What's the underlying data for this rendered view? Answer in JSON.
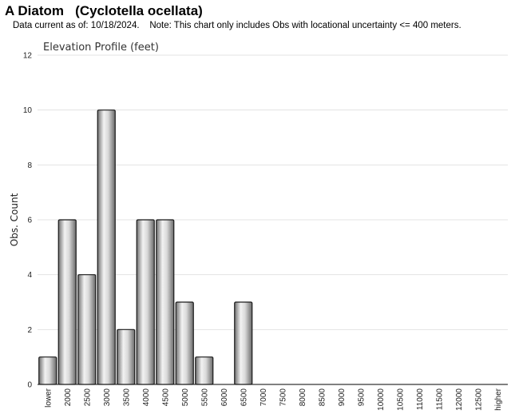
{
  "header": {
    "title": "A Diatom   (Cyclotella ocellata)",
    "note": "Data current as of: 10/18/2024.    Note: This chart only includes Obs with locational uncertainty <= 400 meters."
  },
  "chart_data": {
    "type": "bar",
    "title": "Elevation Profile (feet)",
    "xlabel": "",
    "ylabel": "Obs. Count",
    "ylim": [
      0,
      12
    ],
    "yticks": [
      0,
      2,
      4,
      6,
      8,
      10,
      12
    ],
    "grid": true,
    "categories": [
      "lower",
      "2000",
      "2500",
      "3000",
      "3500",
      "4000",
      "4500",
      "5000",
      "5500",
      "6000",
      "6500",
      "7000",
      "7500",
      "8000",
      "8500",
      "9000",
      "9500",
      "10000",
      "10500",
      "11000",
      "11500",
      "12000",
      "12500",
      "higher"
    ],
    "values": [
      1,
      6,
      4,
      10,
      2,
      6,
      6,
      3,
      1,
      0,
      3,
      0,
      0,
      0,
      0,
      0,
      0,
      0,
      0,
      0,
      0,
      0,
      0,
      0
    ],
    "bar_color": "#b0b0b0"
  }
}
